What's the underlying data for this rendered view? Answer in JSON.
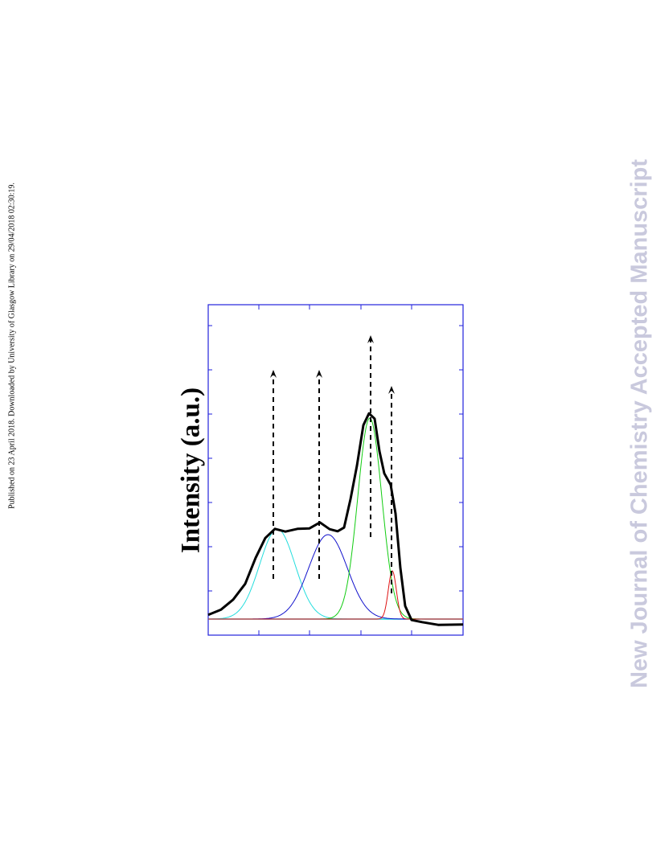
{
  "side_note": "Published on 23 April 2018. Downloaded by University of Glasgow Library on 29/04/2018 02:30:19.",
  "watermark": "New Journal of Chemistry Accepted Manuscript",
  "figure": {
    "y_label": "Intensity (a.u.)"
  }
}
